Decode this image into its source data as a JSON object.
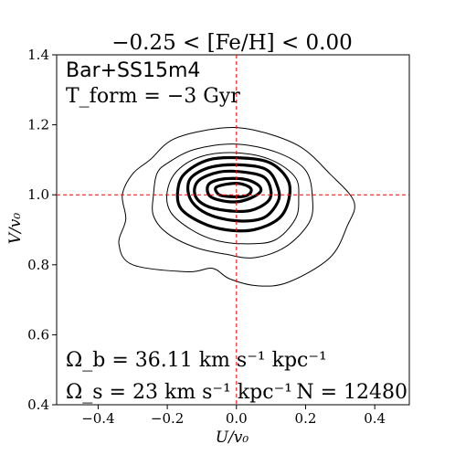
{
  "chart_data": {
    "type": "contour",
    "title": "−0.25 < [Fe/H] < 0.00",
    "model": "Bar+SS15m4",
    "t_form": "T_form = −3 Gyr",
    "omega_b": "Ω_b = 36.11 km s⁻¹ kpc⁻¹",
    "omega_s": "Ω_s = 23 km s⁻¹ kpc⁻¹",
    "n_stars": "N = 12480",
    "xlabel": "U/v₀",
    "ylabel": "V/v₀",
    "xlim": [
      -0.52,
      0.5
    ],
    "ylim": [
      0.4,
      1.4
    ],
    "xticks": [
      -0.4,
      -0.2,
      0.0,
      0.2,
      0.4
    ],
    "xtick_labels": [
      "−0.4",
      "−0.2",
      "0.0",
      "0.2",
      "0.4"
    ],
    "yticks": [
      0.4,
      0.6,
      0.8,
      1.0,
      1.2,
      1.4
    ],
    "ytick_labels": [
      "0.4",
      "0.6",
      "0.8",
      "1.0",
      "1.2",
      "1.4"
    ],
    "reference_lines": {
      "x": 0.0,
      "y": 1.0,
      "color": "#ff0000",
      "style": "dashed"
    },
    "contours": [
      {
        "level": 1,
        "weight": "thin",
        "points": [
          [
            -0.25,
            1.1
          ],
          [
            -0.18,
            1.16
          ],
          [
            -0.05,
            1.19
          ],
          [
            0.05,
            1.185
          ],
          [
            0.18,
            1.14
          ],
          [
            0.27,
            1.06
          ],
          [
            0.34,
            0.98
          ],
          [
            0.32,
            0.91
          ],
          [
            0.27,
            0.82
          ],
          [
            0.15,
            0.75
          ],
          [
            0.06,
            0.74
          ],
          [
            -0.02,
            0.76
          ],
          [
            -0.07,
            0.79
          ],
          [
            -0.14,
            0.78
          ],
          [
            -0.3,
            0.8
          ],
          [
            -0.34,
            0.86
          ],
          [
            -0.32,
            0.93
          ],
          [
            -0.33,
            1.0
          ],
          [
            -0.3,
            1.06
          ]
        ]
      },
      {
        "level": 2,
        "weight": "thin",
        "points": [
          [
            -0.2,
            1.09
          ],
          [
            -0.12,
            1.13
          ],
          [
            0.0,
            1.145
          ],
          [
            0.12,
            1.12
          ],
          [
            0.2,
            1.07
          ],
          [
            0.22,
            0.99
          ],
          [
            0.21,
            0.92
          ],
          [
            0.14,
            0.85
          ],
          [
            0.05,
            0.82
          ],
          [
            -0.03,
            0.83
          ],
          [
            -0.12,
            0.85
          ],
          [
            -0.2,
            0.89
          ],
          [
            -0.24,
            0.94
          ],
          [
            -0.24,
            1.0
          ],
          [
            -0.23,
            1.06
          ]
        ]
      },
      {
        "level": 3,
        "weight": "thin",
        "points": [
          [
            -0.17,
            1.07
          ],
          [
            -0.1,
            1.11
          ],
          [
            0.0,
            1.12
          ],
          [
            0.1,
            1.1
          ],
          [
            0.17,
            1.05
          ],
          [
            0.18,
            0.99
          ],
          [
            0.17,
            0.93
          ],
          [
            0.11,
            0.87
          ],
          [
            0.02,
            0.86
          ],
          [
            -0.06,
            0.87
          ],
          [
            -0.13,
            0.9
          ],
          [
            -0.19,
            0.95
          ],
          [
            -0.2,
            1.01
          ]
        ]
      },
      {
        "level": 4,
        "weight": "thick",
        "points": [
          [
            -0.15,
            1.06
          ],
          [
            -0.08,
            1.1
          ],
          [
            0.02,
            1.105
          ],
          [
            0.1,
            1.09
          ],
          [
            0.15,
            1.04
          ],
          [
            0.15,
            0.98
          ],
          [
            0.12,
            0.93
          ],
          [
            0.05,
            0.9
          ],
          [
            -0.03,
            0.9
          ],
          [
            -0.1,
            0.92
          ],
          [
            -0.16,
            0.96
          ],
          [
            -0.17,
            1.01
          ]
        ]
      },
      {
        "level": 5,
        "weight": "thick",
        "points": [
          [
            -0.13,
            1.05
          ],
          [
            -0.07,
            1.08
          ],
          [
            0.02,
            1.085
          ],
          [
            0.09,
            1.07
          ],
          [
            0.12,
            1.02
          ],
          [
            0.12,
            0.98
          ],
          [
            0.08,
            0.935
          ],
          [
            0.01,
            0.925
          ],
          [
            -0.07,
            0.94
          ],
          [
            -0.12,
            0.97
          ],
          [
            -0.14,
            1.01
          ]
        ]
      },
      {
        "level": 6,
        "weight": "thick",
        "points": [
          [
            -0.11,
            1.04
          ],
          [
            -0.05,
            1.065
          ],
          [
            0.02,
            1.065
          ],
          [
            0.08,
            1.05
          ],
          [
            0.1,
            1.01
          ],
          [
            0.09,
            0.98
          ],
          [
            0.04,
            0.955
          ],
          [
            -0.03,
            0.955
          ],
          [
            -0.09,
            0.97
          ],
          [
            -0.12,
            1.0
          ]
        ]
      },
      {
        "level": 7,
        "weight": "thick",
        "points": [
          [
            -0.08,
            1.03
          ],
          [
            -0.04,
            1.045
          ],
          [
            0.02,
            1.045
          ],
          [
            0.06,
            1.03
          ],
          [
            0.07,
            1.01
          ],
          [
            0.04,
            0.99
          ],
          [
            0.0,
            0.98
          ],
          [
            -0.05,
            0.985
          ],
          [
            -0.08,
            1.0
          ]
        ]
      },
      {
        "level": 8,
        "weight": "thick",
        "points": [
          [
            -0.06,
            1.02
          ],
          [
            -0.03,
            1.03
          ],
          [
            0.01,
            1.032
          ],
          [
            0.04,
            1.02
          ],
          [
            0.04,
            1.005
          ],
          [
            0.02,
            0.995
          ],
          [
            -0.02,
            0.995
          ],
          [
            -0.05,
            1.0
          ]
        ]
      }
    ]
  }
}
